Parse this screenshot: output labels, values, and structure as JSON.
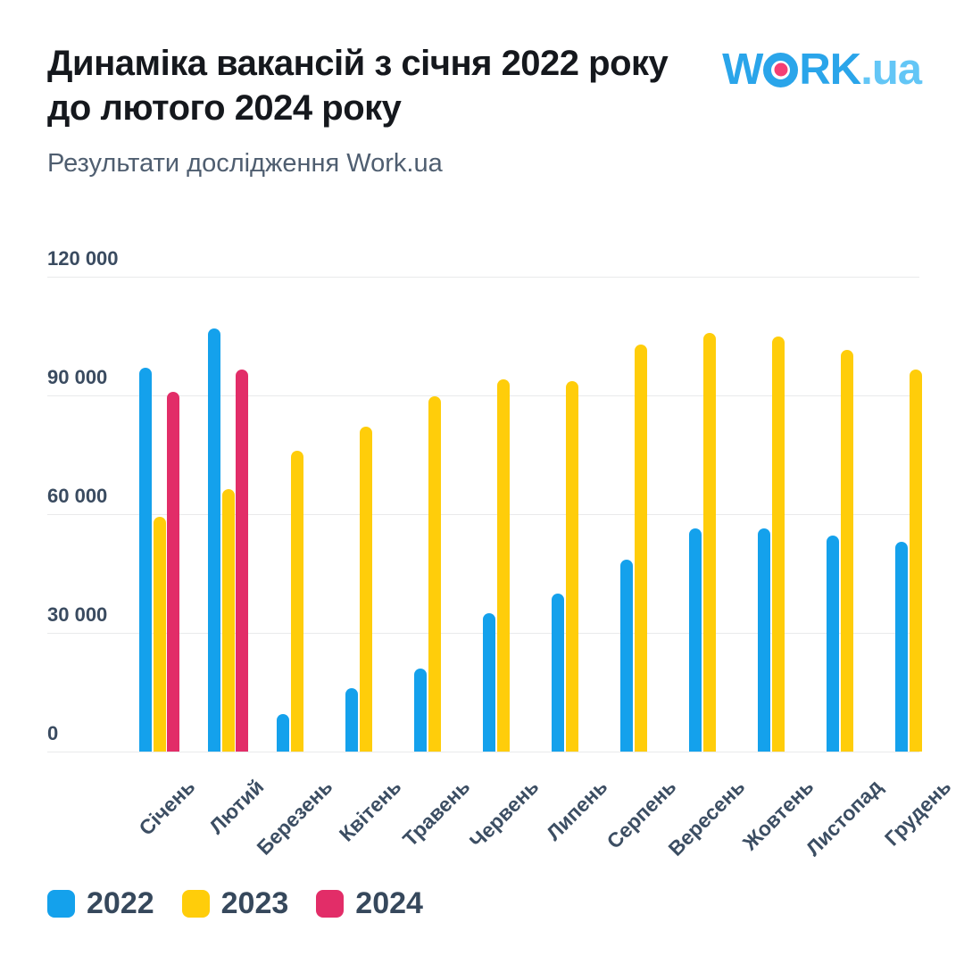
{
  "header": {
    "title_line1": "Динаміка вакансій з січня 2022 року",
    "title_line2": "до лютого 2024 року",
    "subtitle": "Результати дослідження Work.ua",
    "logo": {
      "part1": "W",
      "part2": "RK",
      "part3": ".ua"
    }
  },
  "colors": {
    "blue_2022": "#14a1ec",
    "yellow_2023": "#ffcd0a",
    "pink_2024": "#e22d68",
    "logo_blue": "#2aa5ea",
    "logo_light_blue": "#63c6f6",
    "logo_dot_pink": "#f43f75",
    "axis_text": "#3c4e63",
    "gridline": "#e9eaeb"
  },
  "chart_data": {
    "type": "bar",
    "title": "Динаміка вакансій з січня 2022 року до лютого 2024 року",
    "xlabel": "",
    "ylabel": "",
    "ylim": [
      0,
      120000
    ],
    "grid": true,
    "legend_position": "bottom",
    "categories": [
      "Січень",
      "Лютий",
      "Березень",
      "Квітень",
      "Травень",
      "Червень",
      "Липень",
      "Серпень",
      "Вересень",
      "Жовтень",
      "Листопад",
      "Грудень"
    ],
    "series": [
      {
        "name": "2022",
        "color": "#14a1ec",
        "values": [
          97000,
          107000,
          9500,
          16000,
          21000,
          35000,
          40000,
          48500,
          56400,
          56500,
          54500,
          53000
        ]
      },
      {
        "name": "2023",
        "color": "#ffcd0a",
        "values": [
          59300,
          66300,
          76000,
          82000,
          89800,
          94000,
          93500,
          102800,
          105800,
          104900,
          101500,
          96500
        ]
      },
      {
        "name": "2024",
        "color": "#e22d68",
        "values": [
          90800,
          96500,
          null,
          null,
          null,
          null,
          null,
          null,
          null,
          null,
          null,
          null
        ]
      }
    ],
    "y_ticks": [
      {
        "value": 120000,
        "label": "120 000"
      },
      {
        "value": 90000,
        "label": "90 000"
      },
      {
        "value": 60000,
        "label": "60 000"
      },
      {
        "value": 30000,
        "label": "30 000"
      },
      {
        "value": 0,
        "label": "0"
      }
    ]
  }
}
